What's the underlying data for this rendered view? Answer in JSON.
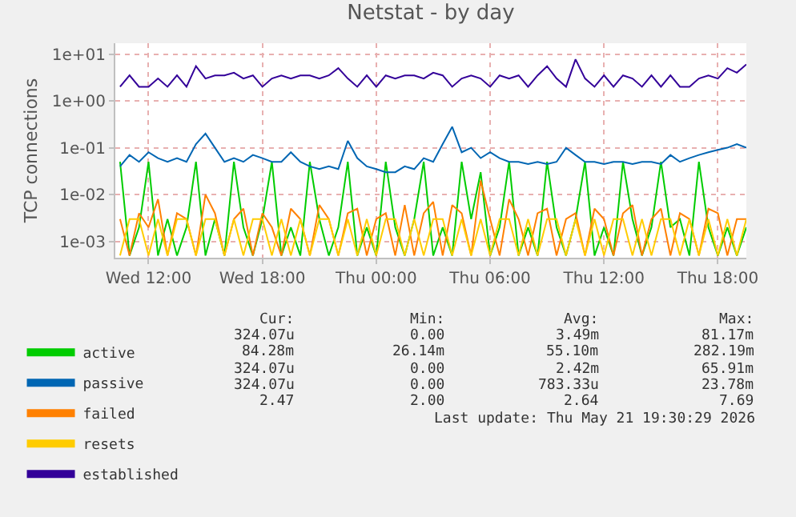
{
  "chart_data": {
    "type": "line",
    "title": "Netstat - by day",
    "ylabel": "TCP connections",
    "x": [
      "2026-05-20T10:30",
      "2026-05-20T11:00",
      "2026-05-20T11:30",
      "2026-05-20T12:00",
      "2026-05-20T12:30",
      "2026-05-20T13:00",
      "2026-05-20T13:30",
      "2026-05-20T14:00",
      "2026-05-20T14:30",
      "2026-05-20T15:00",
      "2026-05-20T15:30",
      "2026-05-20T16:00",
      "2026-05-20T16:30",
      "2026-05-20T17:00",
      "2026-05-20T17:30",
      "2026-05-20T18:00",
      "2026-05-20T18:30",
      "2026-05-20T19:00",
      "2026-05-20T19:30",
      "2026-05-20T20:00",
      "2026-05-20T20:30",
      "2026-05-20T21:00",
      "2026-05-20T21:30",
      "2026-05-20T22:00",
      "2026-05-20T22:30",
      "2026-05-20T23:00",
      "2026-05-20T23:30",
      "2026-05-21T00:00",
      "2026-05-21T00:30",
      "2026-05-21T01:00",
      "2026-05-21T01:30",
      "2026-05-21T02:00",
      "2026-05-21T02:30",
      "2026-05-21T03:00",
      "2026-05-21T03:30",
      "2026-05-21T04:00",
      "2026-05-21T04:30",
      "2026-05-21T05:00",
      "2026-05-21T05:30",
      "2026-05-21T06:00",
      "2026-05-21T06:30",
      "2026-05-21T07:00",
      "2026-05-21T07:30",
      "2026-05-21T08:00",
      "2026-05-21T08:30",
      "2026-05-21T09:00",
      "2026-05-21T09:30",
      "2026-05-21T10:00",
      "2026-05-21T10:30",
      "2026-05-21T11:00",
      "2026-05-21T11:30",
      "2026-05-21T12:00",
      "2026-05-21T12:30",
      "2026-05-21T13:00",
      "2026-05-21T13:30",
      "2026-05-21T14:00",
      "2026-05-21T14:30",
      "2026-05-21T15:00",
      "2026-05-21T15:30",
      "2026-05-21T16:00",
      "2026-05-21T16:30",
      "2026-05-21T17:00",
      "2026-05-21T17:30",
      "2026-05-21T18:00",
      "2026-05-21T18:30",
      "2026-05-21T19:00",
      "2026-05-21T19:30"
    ],
    "series": [
      {
        "name": "active",
        "color": "#00cc00",
        "values": [
          0.05,
          0.0005,
          0.002,
          0.05,
          0.0005,
          0.003,
          0.0005,
          0.002,
          0.05,
          0.0005,
          0.003,
          0.0005,
          0.05,
          0.002,
          0.0005,
          0.003,
          0.05,
          0.0005,
          0.002,
          0.0005,
          0.05,
          0.003,
          0.0005,
          0.002,
          0.05,
          0.0005,
          0.002,
          0.0005,
          0.05,
          0.002,
          0.0005,
          0.003,
          0.05,
          0.0005,
          0.002,
          0.0005,
          0.05,
          0.003,
          0.03,
          0.0005,
          0.002,
          0.05,
          0.0005,
          0.002,
          0.0005,
          0.05,
          0.002,
          0.0005,
          0.003,
          0.05,
          0.0005,
          0.002,
          0.0005,
          0.05,
          0.003,
          0.0005,
          0.002,
          0.05,
          0.002,
          0.003,
          0.0005,
          0.05,
          0.002,
          0.0005,
          0.002,
          0.0005,
          0.002
        ]
      },
      {
        "name": "passive",
        "color": "#0066b3",
        "values": [
          0.04,
          0.07,
          0.05,
          0.08,
          0.06,
          0.05,
          0.06,
          0.05,
          0.12,
          0.2,
          0.1,
          0.05,
          0.06,
          0.05,
          0.07,
          0.06,
          0.05,
          0.05,
          0.08,
          0.05,
          0.04,
          0.035,
          0.04,
          0.035,
          0.14,
          0.06,
          0.04,
          0.035,
          0.03,
          0.03,
          0.04,
          0.035,
          0.06,
          0.05,
          0.12,
          0.28,
          0.08,
          0.1,
          0.06,
          0.08,
          0.06,
          0.05,
          0.05,
          0.045,
          0.05,
          0.045,
          0.05,
          0.1,
          0.07,
          0.05,
          0.05,
          0.045,
          0.05,
          0.05,
          0.045,
          0.05,
          0.05,
          0.045,
          0.07,
          0.05,
          0.06,
          0.07,
          0.08,
          0.09,
          0.1,
          0.12,
          0.1
        ]
      },
      {
        "name": "failed",
        "color": "#ff8000",
        "values": [
          0.003,
          0.0005,
          0.004,
          0.002,
          0.008,
          0.0005,
          0.004,
          0.003,
          0.0005,
          0.01,
          0.004,
          0.0005,
          0.003,
          0.005,
          0.0005,
          0.004,
          0.002,
          0.0005,
          0.005,
          0.003,
          0.0005,
          0.006,
          0.003,
          0.0005,
          0.004,
          0.005,
          0.0005,
          0.003,
          0.004,
          0.0005,
          0.006,
          0.0005,
          0.004,
          0.007,
          0.0005,
          0.006,
          0.004,
          0.0005,
          0.02,
          0.003,
          0.0005,
          0.008,
          0.003,
          0.0005,
          0.004,
          0.005,
          0.0005,
          0.003,
          0.004,
          0.0005,
          0.005,
          0.003,
          0.0005,
          0.004,
          0.006,
          0.0005,
          0.003,
          0.005,
          0.0005,
          0.004,
          0.003,
          0.0005,
          0.005,
          0.004,
          0.0005,
          0.003,
          0.003
        ]
      },
      {
        "name": "resets",
        "color": "#ffcc00",
        "values": [
          0.0005,
          0.003,
          0.003,
          0.0005,
          0.003,
          0.0005,
          0.003,
          0.003,
          0.0005,
          0.003,
          0.003,
          0.0005,
          0.003,
          0.0005,
          0.003,
          0.003,
          0.0005,
          0.003,
          0.0005,
          0.003,
          0.0005,
          0.003,
          0.003,
          0.0005,
          0.003,
          0.0005,
          0.003,
          0.0005,
          0.003,
          0.003,
          0.0005,
          0.003,
          0.0005,
          0.003,
          0.003,
          0.0005,
          0.003,
          0.0005,
          0.003,
          0.0005,
          0.003,
          0.003,
          0.0005,
          0.003,
          0.0005,
          0.003,
          0.003,
          0.0005,
          0.003,
          0.0005,
          0.003,
          0.0005,
          0.003,
          0.003,
          0.0005,
          0.003,
          0.0005,
          0.003,
          0.003,
          0.0005,
          0.003,
          0.0005,
          0.003,
          0.0005,
          0.003,
          0.0005,
          0.003
        ]
      },
      {
        "name": "established",
        "color": "#330099",
        "values": [
          2,
          3.5,
          2,
          2,
          3,
          2,
          3.5,
          2,
          5.5,
          3,
          3.5,
          3.5,
          4,
          3,
          3.5,
          2,
          3,
          3.5,
          3,
          3.5,
          3.5,
          3,
          3.5,
          5,
          3,
          2,
          3.5,
          2,
          3.5,
          3,
          3.5,
          3.5,
          3,
          4,
          3.5,
          2,
          3,
          3.5,
          3,
          2,
          3.5,
          3,
          3.5,
          2,
          3.5,
          5.5,
          3,
          2,
          7.7,
          3,
          2,
          3.5,
          2,
          3.5,
          3,
          2,
          3.5,
          2,
          3.5,
          2,
          2,
          3,
          3.5,
          3,
          5,
          4,
          6
        ]
      }
    ],
    "log": "y",
    "xlim": [
      "2026-05-20T10:15",
      "2026-05-21T19:30"
    ],
    "xticks": [
      {
        "value": "2026-05-20T12:00",
        "label": "Wed 12:00"
      },
      {
        "value": "2026-05-20T18:00",
        "label": "Wed 18:00"
      },
      {
        "value": "2026-05-21T00:00",
        "label": "Thu 00:00"
      },
      {
        "value": "2026-05-21T06:00",
        "label": "Thu 06:00"
      },
      {
        "value": "2026-05-21T12:00",
        "label": "Thu 12:00"
      },
      {
        "value": "2026-05-21T18:00",
        "label": "Thu 18:00"
      }
    ],
    "ylim": [
      0.00045,
      17
    ],
    "yticks": [
      {
        "value": 0.001,
        "label": "1e-03"
      },
      {
        "value": 0.01,
        "label": "1e-02"
      },
      {
        "value": 0.1,
        "label": "1e-01"
      },
      {
        "value": 1,
        "label": "1e+00"
      },
      {
        "value": 10,
        "label": "1e+01"
      }
    ],
    "grid": true,
    "legend": "bottom left",
    "marker": "none",
    "line_style": "solid",
    "annotations": [
      "Cur:",
      "Min:",
      "Avg:",
      "Max:",
      "324.07u",
      "0.00",
      "3.49m",
      "81.17m",
      "84.28m",
      "26.14m",
      "55.10m",
      "282.19m",
      "324.07u",
      "0.00",
      "2.42m",
      "65.91m",
      "324.07u",
      "0.00",
      "783.33u",
      "23.78m",
      "2.47",
      "2.00",
      "2.64",
      "7.69",
      "Last update: Thu May 21 19:30:29 2026"
    ]
  }
}
